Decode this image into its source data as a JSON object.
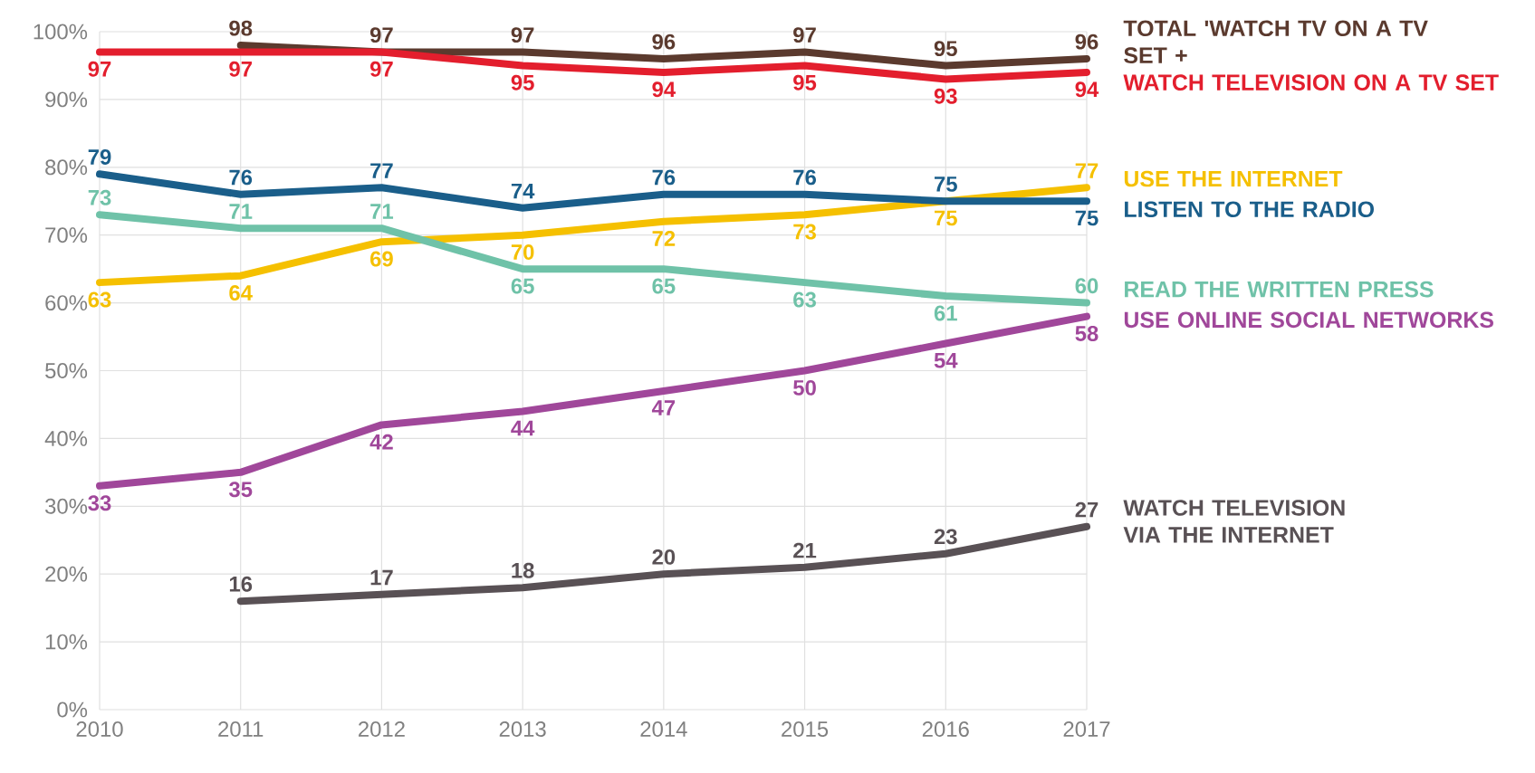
{
  "chart_data": {
    "type": "line",
    "categories": [
      "2010",
      "2011",
      "2012",
      "2013",
      "2014",
      "2015",
      "2016",
      "2017"
    ],
    "ylim": [
      0,
      100
    ],
    "yticks": [
      {
        "value": 0,
        "label": "0%"
      },
      {
        "value": 10,
        "label": "10%"
      },
      {
        "value": 20,
        "label": "20%"
      },
      {
        "value": 30,
        "label": "30%"
      },
      {
        "value": 40,
        "label": "40%"
      },
      {
        "value": 50,
        "label": "50%"
      },
      {
        "value": 60,
        "label": "60%"
      },
      {
        "value": 70,
        "label": "70%"
      },
      {
        "value": 80,
        "label": "80%"
      },
      {
        "value": 90,
        "label": "90%"
      },
      {
        "value": 100,
        "label": "100%"
      }
    ],
    "grid": true,
    "data_labels": true,
    "series": [
      {
        "name": "TOTAL 'WATCH TV ON A TV SET +",
        "color": "#5b3a2e",
        "values": [
          null,
          98,
          97,
          97,
          96,
          97,
          95,
          96
        ]
      },
      {
        "name": "WATCH TELEVISION ON A TV SET",
        "color": "#e31e2d",
        "values": [
          97,
          97,
          97,
          95,
          94,
          95,
          93,
          94
        ]
      },
      {
        "name": "USE THE INTERNET",
        "color": "#f5c000",
        "values": [
          63,
          64,
          69,
          70,
          72,
          73,
          75,
          77
        ]
      },
      {
        "name": "LISTEN TO THE RADIO",
        "color": "#1a5e8a",
        "values": [
          79,
          76,
          77,
          74,
          76,
          76,
          75,
          75
        ]
      },
      {
        "name": "READ THE WRITTEN PRESS",
        "color": "#6fc2a8",
        "values": [
          73,
          71,
          71,
          65,
          65,
          63,
          61,
          60
        ]
      },
      {
        "name": "USE ONLINE SOCIAL NETWORKS",
        "color": "#a0479a",
        "values": [
          33,
          35,
          42,
          44,
          47,
          50,
          54,
          58
        ]
      },
      {
        "name": "WATCH TELEVISION VIA THE INTERNET",
        "color": "#595155",
        "values": [
          null,
          16,
          17,
          18,
          20,
          21,
          23,
          27
        ]
      }
    ]
  }
}
